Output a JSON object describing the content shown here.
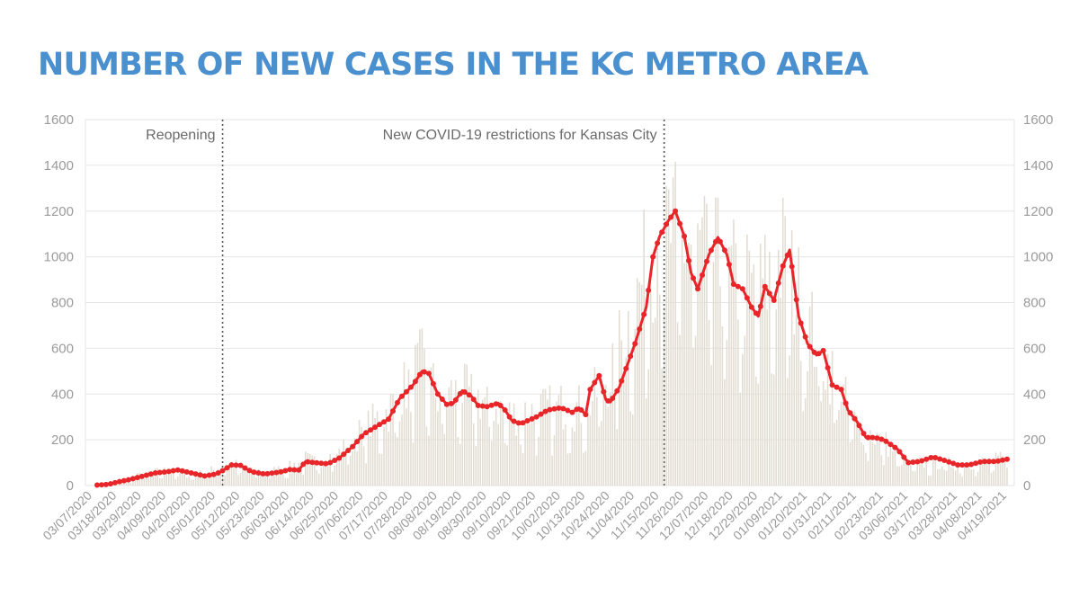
{
  "title": "NUMBER OF NEW CASES IN THE KC METRO AREA",
  "colors": {
    "title": "#4a8fce",
    "bars": "#e2dcd2",
    "line": "#e8262a",
    "grid": "#e6e6e6",
    "axis_text": "#9a9a9a",
    "annotation_line": "#555555"
  },
  "chart_data": {
    "type": "bar",
    "description_note": "",
    "ylim": [
      0,
      1600
    ],
    "yticks": [
      0,
      200,
      400,
      600,
      800,
      1000,
      1200,
      1400,
      1600
    ],
    "grid": true,
    "start_date": "",
    "x_tick_labels": [
      "03/07/2020",
      "03/18/2020",
      "03/29/2020",
      "04/09/2020",
      "04/20/2020",
      "05/01/2020",
      "05/12/2020",
      "05/23/2020",
      "06/03/2020",
      "06/14/2020",
      "06/25/2020",
      "07/06/2020",
      "07/17/2020",
      "07/28/2020",
      "08/08/2020",
      "08/19/2020",
      "08/30/2020",
      "09/10/2020",
      "09/21/2020",
      "10/02/2020",
      "10/13/2020",
      "10/24/2020",
      "11/04/2020",
      "11/15/2020",
      "11/26/2020",
      "12/07/2020",
      "12/18/2020",
      "12/29/2020",
      "01/09/2021",
      "01/20/2021",
      "01/31/2021",
      "02/11/2021",
      "02/23/2021",
      "03/06/2021",
      "03/17/2021",
      "03/28/2021",
      "04/08/2021",
      "04/19/2021"
    ],
    "annotations": [
      {
        "label": "Reopening",
        "date": "05/04/2020"
      },
      {
        "label": "New COVID-19 restrictions for Kansas City",
        "date": "11/17/2020"
      }
    ],
    "series": [
      {
        "kind": "daily-bars",
        "points": [
          [
            "03/07/2020",
            0
          ],
          [
            "03/18/2020",
            4
          ],
          [
            "03/29/2020",
            50
          ],
          [
            "04/09/2020",
            65
          ],
          [
            "04/20/2020",
            42
          ],
          [
            "05/01/2020",
            70
          ],
          [
            "05/08/2020",
            95
          ],
          [
            "05/12/2020",
            80
          ],
          [
            "05/23/2020",
            55
          ],
          [
            "06/03/2020",
            80
          ],
          [
            "06/10/2020",
            115
          ],
          [
            "06/14/2020",
            100
          ],
          [
            "06/25/2020",
            140
          ],
          [
            "07/06/2020",
            240
          ],
          [
            "07/17/2020",
            320
          ],
          [
            "07/28/2020",
            470
          ],
          [
            "08/01/2020",
            520
          ],
          [
            "08/08/2020",
            380
          ],
          [
            "08/19/2020",
            400
          ],
          [
            "08/30/2020",
            360
          ],
          [
            "09/10/2020",
            300
          ],
          [
            "09/21/2020",
            320
          ],
          [
            "10/02/2020",
            340
          ],
          [
            "10/13/2020",
            330
          ],
          [
            "10/24/2020",
            480
          ],
          [
            "11/04/2020",
            780
          ],
          [
            "11/15/2020",
            1100
          ],
          [
            "11/26/2020",
            1050
          ],
          [
            "12/07/2020",
            980
          ],
          [
            "12/18/2020",
            880
          ],
          [
            "12/29/2020",
            820
          ],
          [
            "01/09/2021",
            980
          ],
          [
            "01/20/2021",
            700
          ],
          [
            "01/31/2021",
            480
          ],
          [
            "02/11/2021",
            260
          ],
          [
            "02/23/2021",
            190
          ],
          [
            "03/06/2021",
            90
          ],
          [
            "03/17/2021",
            100
          ],
          [
            "03/28/2021",
            90
          ],
          [
            "04/08/2021",
            100
          ],
          [
            "04/19/2021",
            115
          ]
        ]
      },
      {
        "kind": "moving-average-line",
        "points": [
          [
            "03/09/2020",
            2
          ],
          [
            "03/14/2020",
            5
          ],
          [
            "03/18/2020",
            15
          ],
          [
            "03/23/2020",
            25
          ],
          [
            "03/29/2020",
            40
          ],
          [
            "04/04/2020",
            55
          ],
          [
            "04/09/2020",
            60
          ],
          [
            "04/14/2020",
            68
          ],
          [
            "04/20/2020",
            55
          ],
          [
            "04/26/2020",
            42
          ],
          [
            "05/01/2020",
            50
          ],
          [
            "05/04/2020",
            65
          ],
          [
            "05/08/2020",
            90
          ],
          [
            "05/12/2020",
            88
          ],
          [
            "05/17/2020",
            60
          ],
          [
            "05/23/2020",
            50
          ],
          [
            "05/30/2020",
            60
          ],
          [
            "06/03/2020",
            70
          ],
          [
            "06/07/2020",
            68
          ],
          [
            "06/10/2020",
            105
          ],
          [
            "06/14/2020",
            100
          ],
          [
            "06/20/2020",
            95
          ],
          [
            "06/25/2020",
            120
          ],
          [
            "07/01/2020",
            170
          ],
          [
            "07/06/2020",
            225
          ],
          [
            "07/11/2020",
            255
          ],
          [
            "07/17/2020",
            290
          ],
          [
            "07/22/2020",
            380
          ],
          [
            "07/28/2020",
            440
          ],
          [
            "08/01/2020",
            500
          ],
          [
            "08/04/2020",
            490
          ],
          [
            "08/08/2020",
            400
          ],
          [
            "08/12/2020",
            355
          ],
          [
            "08/15/2020",
            360
          ],
          [
            "08/19/2020",
            415
          ],
          [
            "08/23/2020",
            390
          ],
          [
            "08/26/2020",
            350
          ],
          [
            "08/30/2020",
            345
          ],
          [
            "09/04/2020",
            360
          ],
          [
            "09/07/2020",
            330
          ],
          [
            "09/10/2020",
            285
          ],
          [
            "09/14/2020",
            270
          ],
          [
            "09/21/2020",
            300
          ],
          [
            "09/26/2020",
            330
          ],
          [
            "10/02/2020",
            340
          ],
          [
            "10/07/2020",
            320
          ],
          [
            "10/10/2020",
            340
          ],
          [
            "10/13/2020",
            310
          ],
          [
            "10/15/2020",
            420
          ],
          [
            "10/19/2020",
            480
          ],
          [
            "10/22/2020",
            375
          ],
          [
            "10/24/2020",
            365
          ],
          [
            "10/28/2020",
            430
          ],
          [
            "11/04/2020",
            620
          ],
          [
            "11/09/2020",
            780
          ],
          [
            "11/12/2020",
            1000
          ],
          [
            "11/15/2020",
            1090
          ],
          [
            "11/19/2020",
            1160
          ],
          [
            "11/22/2020",
            1200
          ],
          [
            "11/26/2020",
            1090
          ],
          [
            "11/29/2020",
            930
          ],
          [
            "12/02/2020",
            860
          ],
          [
            "12/07/2020",
            1010
          ],
          [
            "12/11/2020",
            1085
          ],
          [
            "12/15/2020",
            1010
          ],
          [
            "12/18/2020",
            880
          ],
          [
            "12/22/2020",
            860
          ],
          [
            "12/26/2020",
            780
          ],
          [
            "12/29/2020",
            740
          ],
          [
            "01/01/2021",
            870
          ],
          [
            "01/05/2021",
            810
          ],
          [
            "01/09/2021",
            960
          ],
          [
            "01/12/2021",
            1030
          ],
          [
            "01/16/2021",
            740
          ],
          [
            "01/20/2021",
            620
          ],
          [
            "01/24/2021",
            570
          ],
          [
            "01/27/2021",
            590
          ],
          [
            "01/31/2021",
            440
          ],
          [
            "02/04/2021",
            420
          ],
          [
            "02/07/2021",
            330
          ],
          [
            "02/11/2021",
            280
          ],
          [
            "02/15/2021",
            210
          ],
          [
            "02/19/2021",
            210
          ],
          [
            "02/23/2021",
            200
          ],
          [
            "03/01/2021",
            160
          ],
          [
            "03/06/2021",
            100
          ],
          [
            "03/11/2021",
            105
          ],
          [
            "03/17/2021",
            125
          ],
          [
            "03/22/2021",
            110
          ],
          [
            "03/28/2021",
            90
          ],
          [
            "04/02/2021",
            90
          ],
          [
            "04/08/2021",
            105
          ],
          [
            "04/14/2021",
            105
          ],
          [
            "04/19/2021",
            115
          ]
        ]
      }
    ]
  }
}
